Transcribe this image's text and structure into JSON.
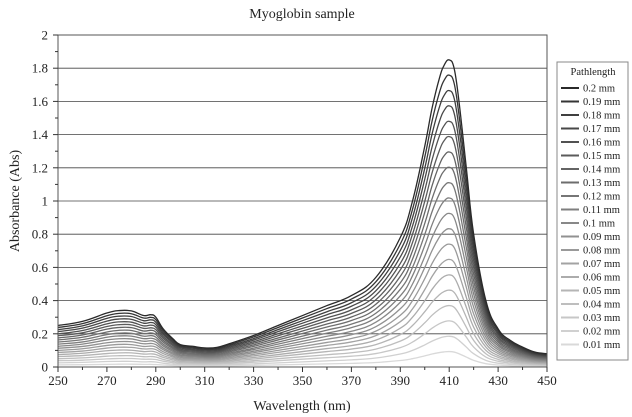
{
  "chart_data": {
    "type": "line",
    "title": "Myoglobin sample",
    "xlabel": "Wavelength (nm)",
    "ylabel": "Absorbance (Abs)",
    "xlim": [
      250,
      450
    ],
    "ylim": [
      0,
      2
    ],
    "xticks": [
      250,
      270,
      290,
      310,
      330,
      350,
      370,
      390,
      410,
      430,
      450
    ],
    "yticks": [
      0,
      0.2,
      0.4,
      0.6,
      0.8,
      1,
      1.2,
      1.4,
      1.6,
      1.8,
      2
    ],
    "xtick_labels": [
      "250",
      "270",
      "290",
      "310",
      "330",
      "350",
      "370",
      "390",
      "410",
      "430",
      "450"
    ],
    "ytick_labels": [
      "0",
      "0.2",
      "0.4",
      "0.6",
      "0.8",
      "1",
      "1.2",
      "1.4",
      "1.6",
      "1.8",
      "2"
    ],
    "grid": "horizontal",
    "legend": {
      "title": "Pathlength",
      "position": "right"
    },
    "x": [
      250,
      260,
      270,
      275,
      280,
      285,
      288,
      290,
      293,
      297,
      300,
      305,
      310,
      315,
      320,
      330,
      340,
      350,
      360,
      370,
      380,
      390,
      395,
      400,
      403,
      406,
      408,
      410,
      412,
      414,
      417,
      420,
      425,
      430,
      435,
      440,
      445,
      450
    ],
    "series": [
      {
        "name": "0.2 mm",
        "color": "#2a2a2a",
        "values": [
          0.25,
          0.275,
          0.325,
          0.34,
          0.338,
          0.31,
          0.315,
          0.3,
          0.23,
          0.17,
          0.135,
          0.125,
          0.115,
          0.118,
          0.14,
          0.19,
          0.25,
          0.31,
          0.37,
          0.43,
          0.54,
          0.78,
          1.0,
          1.33,
          1.56,
          1.74,
          1.82,
          1.85,
          1.8,
          1.6,
          1.2,
          0.8,
          0.4,
          0.23,
          0.16,
          0.12,
          0.09,
          0.08
        ]
      },
      {
        "name": "0.19 mm",
        "color": "#353535",
        "values": [
          0.238,
          0.261,
          0.309,
          0.323,
          0.321,
          0.295,
          0.299,
          0.285,
          0.219,
          0.162,
          0.128,
          0.119,
          0.109,
          0.112,
          0.133,
          0.181,
          0.238,
          0.295,
          0.352,
          0.409,
          0.513,
          0.741,
          0.95,
          1.264,
          1.482,
          1.653,
          1.729,
          1.758,
          1.71,
          1.52,
          1.14,
          0.76,
          0.38,
          0.219,
          0.152,
          0.114,
          0.086,
          0.076
        ]
      },
      {
        "name": "0.18 mm",
        "color": "#3f3f3f",
        "values": [
          0.225,
          0.248,
          0.293,
          0.306,
          0.304,
          0.279,
          0.284,
          0.27,
          0.207,
          0.153,
          0.122,
          0.113,
          0.104,
          0.106,
          0.126,
          0.171,
          0.225,
          0.279,
          0.333,
          0.387,
          0.486,
          0.702,
          0.9,
          1.197,
          1.404,
          1.566,
          1.638,
          1.665,
          1.62,
          1.44,
          1.08,
          0.72,
          0.36,
          0.207,
          0.144,
          0.108,
          0.081,
          0.072
        ]
      },
      {
        "name": "0.17 mm",
        "color": "#484848",
        "values": [
          0.213,
          0.234,
          0.276,
          0.289,
          0.287,
          0.264,
          0.268,
          0.255,
          0.196,
          0.145,
          0.115,
          0.106,
          0.098,
          0.1,
          0.119,
          0.162,
          0.213,
          0.264,
          0.315,
          0.366,
          0.459,
          0.663,
          0.85,
          1.131,
          1.326,
          1.479,
          1.547,
          1.573,
          1.53,
          1.36,
          1.02,
          0.68,
          0.34,
          0.196,
          0.136,
          0.102,
          0.077,
          0.068
        ]
      },
      {
        "name": "0.16 mm",
        "color": "#525252",
        "values": [
          0.2,
          0.22,
          0.26,
          0.272,
          0.27,
          0.248,
          0.252,
          0.24,
          0.184,
          0.136,
          0.108,
          0.1,
          0.092,
          0.094,
          0.112,
          0.152,
          0.2,
          0.248,
          0.296,
          0.344,
          0.432,
          0.624,
          0.8,
          1.064,
          1.248,
          1.392,
          1.456,
          1.48,
          1.44,
          1.28,
          0.96,
          0.64,
          0.32,
          0.184,
          0.128,
          0.096,
          0.072,
          0.064
        ]
      },
      {
        "name": "0.15 mm",
        "color": "#5b5b5b",
        "values": [
          0.188,
          0.206,
          0.244,
          0.255,
          0.254,
          0.233,
          0.236,
          0.225,
          0.173,
          0.128,
          0.101,
          0.094,
          0.086,
          0.089,
          0.105,
          0.143,
          0.188,
          0.233,
          0.278,
          0.323,
          0.405,
          0.585,
          0.75,
          0.998,
          1.17,
          1.305,
          1.365,
          1.388,
          1.35,
          1.2,
          0.9,
          0.6,
          0.3,
          0.173,
          0.12,
          0.09,
          0.068,
          0.06
        ]
      },
      {
        "name": "0.14 mm",
        "color": "#646464",
        "values": [
          0.175,
          0.193,
          0.228,
          0.238,
          0.237,
          0.217,
          0.221,
          0.21,
          0.161,
          0.119,
          0.095,
          0.088,
          0.081,
          0.083,
          0.098,
          0.133,
          0.175,
          0.217,
          0.259,
          0.301,
          0.378,
          0.546,
          0.7,
          0.931,
          1.092,
          1.218,
          1.274,
          1.295,
          1.26,
          1.12,
          0.84,
          0.56,
          0.28,
          0.161,
          0.112,
          0.084,
          0.063,
          0.056
        ]
      },
      {
        "name": "0.13 mm",
        "color": "#6d6d6d",
        "values": [
          0.163,
          0.179,
          0.211,
          0.221,
          0.22,
          0.202,
          0.205,
          0.195,
          0.15,
          0.111,
          0.088,
          0.081,
          0.075,
          0.077,
          0.091,
          0.124,
          0.163,
          0.202,
          0.241,
          0.28,
          0.351,
          0.507,
          0.65,
          0.865,
          1.014,
          1.131,
          1.183,
          1.203,
          1.17,
          1.04,
          0.78,
          0.52,
          0.26,
          0.15,
          0.104,
          0.078,
          0.059,
          0.052
        ]
      },
      {
        "name": "0.12 mm",
        "color": "#767676",
        "values": [
          0.15,
          0.165,
          0.195,
          0.204,
          0.203,
          0.186,
          0.189,
          0.18,
          0.138,
          0.102,
          0.081,
          0.075,
          0.069,
          0.071,
          0.084,
          0.114,
          0.15,
          0.186,
          0.222,
          0.258,
          0.324,
          0.468,
          0.6,
          0.798,
          0.936,
          1.044,
          1.092,
          1.11,
          1.08,
          0.96,
          0.72,
          0.48,
          0.24,
          0.138,
          0.096,
          0.072,
          0.054,
          0.048
        ]
      },
      {
        "name": "0.11 mm",
        "color": "#7f7f7f",
        "values": [
          0.138,
          0.151,
          0.179,
          0.187,
          0.186,
          0.171,
          0.173,
          0.165,
          0.127,
          0.094,
          0.074,
          0.069,
          0.063,
          0.065,
          0.077,
          0.105,
          0.138,
          0.171,
          0.204,
          0.237,
          0.297,
          0.429,
          0.55,
          0.732,
          0.858,
          0.957,
          1.001,
          1.018,
          0.99,
          0.88,
          0.66,
          0.44,
          0.22,
          0.127,
          0.088,
          0.066,
          0.05,
          0.044
        ]
      },
      {
        "name": "0.1 mm",
        "color": "#888888",
        "values": [
          0.125,
          0.138,
          0.163,
          0.17,
          0.169,
          0.155,
          0.158,
          0.15,
          0.115,
          0.085,
          0.068,
          0.063,
          0.058,
          0.059,
          0.07,
          0.095,
          0.125,
          0.155,
          0.185,
          0.215,
          0.27,
          0.39,
          0.5,
          0.665,
          0.78,
          0.87,
          0.91,
          0.925,
          0.9,
          0.8,
          0.6,
          0.4,
          0.2,
          0.115,
          0.08,
          0.06,
          0.045,
          0.04
        ]
      },
      {
        "name": "0.09 mm",
        "color": "#919191",
        "values": [
          0.113,
          0.124,
          0.146,
          0.153,
          0.152,
          0.14,
          0.142,
          0.135,
          0.104,
          0.077,
          0.061,
          0.056,
          0.052,
          0.053,
          0.063,
          0.086,
          0.113,
          0.14,
          0.167,
          0.194,
          0.243,
          0.351,
          0.45,
          0.599,
          0.702,
          0.783,
          0.819,
          0.833,
          0.81,
          0.72,
          0.54,
          0.36,
          0.18,
          0.104,
          0.072,
          0.054,
          0.041,
          0.036
        ]
      },
      {
        "name": "0.08 mm",
        "color": "#9a9a9a",
        "values": [
          0.1,
          0.11,
          0.13,
          0.136,
          0.135,
          0.124,
          0.126,
          0.12,
          0.092,
          0.068,
          0.054,
          0.05,
          0.046,
          0.047,
          0.056,
          0.076,
          0.1,
          0.124,
          0.148,
          0.172,
          0.216,
          0.312,
          0.4,
          0.532,
          0.624,
          0.696,
          0.728,
          0.74,
          0.72,
          0.64,
          0.48,
          0.32,
          0.16,
          0.092,
          0.064,
          0.048,
          0.036,
          0.032
        ]
      },
      {
        "name": "0.07 mm",
        "color": "#a3a3a3",
        "values": [
          0.088,
          0.096,
          0.114,
          0.119,
          0.118,
          0.109,
          0.11,
          0.105,
          0.081,
          0.06,
          0.047,
          0.044,
          0.04,
          0.041,
          0.049,
          0.067,
          0.088,
          0.109,
          0.13,
          0.151,
          0.189,
          0.273,
          0.35,
          0.466,
          0.546,
          0.609,
          0.637,
          0.648,
          0.63,
          0.56,
          0.42,
          0.28,
          0.14,
          0.081,
          0.056,
          0.042,
          0.032,
          0.028
        ]
      },
      {
        "name": "0.06 mm",
        "color": "#acacac",
        "values": [
          0.075,
          0.083,
          0.098,
          0.102,
          0.101,
          0.093,
          0.095,
          0.09,
          0.069,
          0.051,
          0.041,
          0.038,
          0.035,
          0.035,
          0.042,
          0.057,
          0.075,
          0.093,
          0.111,
          0.129,
          0.162,
          0.234,
          0.3,
          0.399,
          0.468,
          0.522,
          0.546,
          0.555,
          0.54,
          0.48,
          0.36,
          0.24,
          0.12,
          0.069,
          0.048,
          0.036,
          0.027,
          0.024
        ]
      },
      {
        "name": "0.05 mm",
        "color": "#b5b5b5",
        "values": [
          0.063,
          0.069,
          0.081,
          0.085,
          0.085,
          0.078,
          0.079,
          0.075,
          0.058,
          0.043,
          0.034,
          0.031,
          0.029,
          0.03,
          0.035,
          0.048,
          0.063,
          0.078,
          0.093,
          0.108,
          0.135,
          0.195,
          0.25,
          0.333,
          0.39,
          0.435,
          0.455,
          0.463,
          0.45,
          0.4,
          0.3,
          0.2,
          0.1,
          0.058,
          0.04,
          0.03,
          0.023,
          0.02
        ]
      },
      {
        "name": "0.04 mm",
        "color": "#bebebe",
        "values": [
          0.05,
          0.055,
          0.065,
          0.068,
          0.068,
          0.062,
          0.063,
          0.06,
          0.046,
          0.034,
          0.027,
          0.025,
          0.023,
          0.024,
          0.028,
          0.038,
          0.05,
          0.062,
          0.074,
          0.086,
          0.108,
          0.156,
          0.2,
          0.266,
          0.312,
          0.348,
          0.364,
          0.37,
          0.36,
          0.32,
          0.24,
          0.16,
          0.08,
          0.046,
          0.032,
          0.024,
          0.018,
          0.016
        ]
      },
      {
        "name": "0.03 mm",
        "color": "#c7c7c7",
        "values": [
          0.038,
          0.041,
          0.049,
          0.051,
          0.051,
          0.047,
          0.047,
          0.045,
          0.035,
          0.026,
          0.02,
          0.019,
          0.017,
          0.018,
          0.021,
          0.029,
          0.038,
          0.047,
          0.056,
          0.065,
          0.081,
          0.117,
          0.15,
          0.2,
          0.234,
          0.261,
          0.273,
          0.278,
          0.27,
          0.24,
          0.18,
          0.12,
          0.06,
          0.035,
          0.024,
          0.018,
          0.014,
          0.012
        ]
      },
      {
        "name": "0.02 mm",
        "color": "#d0d0d0",
        "values": [
          0.025,
          0.028,
          0.033,
          0.034,
          0.034,
          0.031,
          0.032,
          0.03,
          0.023,
          0.017,
          0.014,
          0.013,
          0.012,
          0.012,
          0.014,
          0.019,
          0.025,
          0.031,
          0.037,
          0.043,
          0.054,
          0.078,
          0.1,
          0.133,
          0.156,
          0.174,
          0.182,
          0.185,
          0.18,
          0.16,
          0.12,
          0.08,
          0.04,
          0.023,
          0.016,
          0.012,
          0.009,
          0.008
        ]
      },
      {
        "name": "0.01 mm",
        "color": "#d9d9d9",
        "values": [
          0.013,
          0.014,
          0.016,
          0.017,
          0.017,
          0.016,
          0.016,
          0.015,
          0.012,
          0.009,
          0.007,
          0.006,
          0.006,
          0.006,
          0.007,
          0.01,
          0.013,
          0.016,
          0.019,
          0.022,
          0.027,
          0.039,
          0.05,
          0.067,
          0.078,
          0.087,
          0.091,
          0.093,
          0.09,
          0.08,
          0.06,
          0.04,
          0.02,
          0.012,
          0.008,
          0.006,
          0.005,
          0.004
        ]
      }
    ]
  }
}
